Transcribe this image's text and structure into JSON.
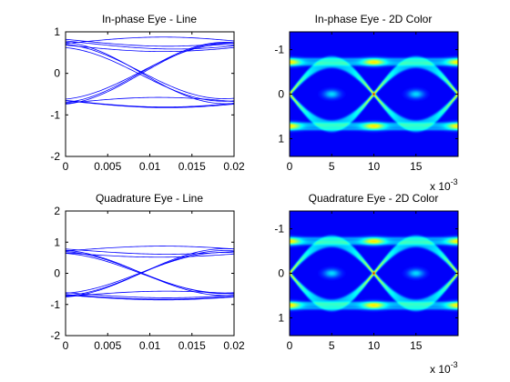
{
  "figure": {
    "background": "#ffffff"
  },
  "chart_data": [
    {
      "id": "ip_line",
      "type": "line",
      "title": "In-phase Eye - Line",
      "xlabel": "",
      "ylabel": "",
      "xlim": [
        0,
        0.02
      ],
      "ylim": [
        -2,
        1
      ],
      "y_reversed": false,
      "xticks": [
        0,
        0.005,
        0.01,
        0.015,
        0.02
      ],
      "xtick_labels": [
        "0",
        "0.005",
        "0.01",
        "0.015",
        "0.02"
      ],
      "yticks": [
        -2,
        -1,
        0,
        1
      ],
      "ytick_labels": [
        "-2",
        "-1",
        "0",
        "1"
      ],
      "line_color": "#0000ff",
      "series": [
        {
          "x": [
            0,
            0.02
          ],
          "y": [
            0.72,
            0.78
          ]
        },
        {
          "x": [
            0,
            0.02
          ],
          "y": [
            0.68,
            0.62
          ]
        },
        {
          "x": [
            0,
            0.02
          ],
          "y": [
            0.82,
            0.74
          ]
        },
        {
          "x": [
            0,
            0.02
          ],
          "y": [
            -0.65,
            -0.72
          ]
        },
        {
          "x": [
            0,
            0.02
          ],
          "y": [
            -0.72,
            -0.68
          ]
        },
        {
          "x": [
            0,
            0.02
          ],
          "y": [
            0.75,
            -0.72
          ]
        },
        {
          "x": [
            0,
            0.02
          ],
          "y": [
            0.62,
            -0.66
          ]
        },
        {
          "x": [
            0,
            0.02
          ],
          "y": [
            -0.7,
            0.74
          ]
        },
        {
          "x": [
            0,
            0.02
          ],
          "y": [
            -0.62,
            0.68
          ]
        },
        {
          "x": [
            0,
            0.02
          ],
          "y": [
            0.78,
            0.66
          ]
        },
        {
          "x": [
            0,
            0.02
          ],
          "y": [
            -0.66,
            -0.74
          ]
        },
        {
          "x": [
            0,
            0.02
          ],
          "y": [
            0.7,
            -0.6
          ]
        },
        {
          "x": [
            0,
            0.02
          ],
          "y": [
            -0.74,
            0.72
          ]
        }
      ]
    },
    {
      "id": "ip_color",
      "type": "heatmap",
      "title": "In-phase Eye - 2D Color",
      "xlabel": "",
      "ylabel": "",
      "xlim": [
        0,
        20
      ],
      "ylim": [
        -1.4,
        1.4
      ],
      "y_reversed": true,
      "xticks": [
        0,
        5,
        10,
        15
      ],
      "xtick_labels": [
        "0",
        "5",
        "10",
        "15"
      ],
      "yticks": [
        -1,
        0,
        1
      ],
      "ytick_labels": [
        "-1",
        "0",
        "1"
      ],
      "exponent_label": {
        "base": "x 10",
        "power": "-3"
      },
      "colormap": "jet",
      "eye_level": 0.72,
      "crossings_x": [
        5,
        15
      ],
      "hotspots_x": [
        0,
        10,
        20
      ]
    },
    {
      "id": "q_line",
      "type": "line",
      "title": "Quadrature Eye - Line",
      "xlabel": "",
      "ylabel": "",
      "xlim": [
        0,
        0.02
      ],
      "ylim": [
        -2,
        2
      ],
      "y_reversed": false,
      "xticks": [
        0,
        0.005,
        0.01,
        0.015,
        0.02
      ],
      "xtick_labels": [
        "0",
        "0.005",
        "0.01",
        "0.015",
        "0.02"
      ],
      "yticks": [
        -2,
        -1,
        0,
        1,
        2
      ],
      "ytick_labels": [
        "-2",
        "-1",
        "0",
        "1",
        "2"
      ],
      "line_color": "#0000ff",
      "series": [
        {
          "x": [
            0,
            0.02
          ],
          "y": [
            0.72,
            0.78
          ]
        },
        {
          "x": [
            0,
            0.02
          ],
          "y": [
            0.66,
            0.62
          ]
        },
        {
          "x": [
            0,
            0.02
          ],
          "y": [
            -0.68,
            -0.74
          ]
        },
        {
          "x": [
            0,
            0.02
          ],
          "y": [
            -0.74,
            -0.66
          ]
        },
        {
          "x": [
            0,
            0.02
          ],
          "y": [
            -0.62,
            -0.7
          ]
        },
        {
          "x": [
            0,
            0.02
          ],
          "y": [
            0.74,
            -0.7
          ]
        },
        {
          "x": [
            0,
            0.02
          ],
          "y": [
            0.64,
            -0.62
          ]
        },
        {
          "x": [
            0,
            0.02
          ],
          "y": [
            -0.72,
            0.72
          ]
        },
        {
          "x": [
            0,
            0.02
          ],
          "y": [
            -0.64,
            0.66
          ]
        },
        {
          "x": [
            0,
            0.02
          ],
          "y": [
            0.78,
            0.7
          ]
        },
        {
          "x": [
            0,
            0.02
          ],
          "y": [
            -0.7,
            -0.76
          ]
        },
        {
          "x": [
            0,
            0.02
          ],
          "y": [
            0.7,
            -0.64
          ]
        },
        {
          "x": [
            0,
            0.02
          ],
          "y": [
            -0.76,
            0.78
          ]
        }
      ]
    },
    {
      "id": "q_color",
      "type": "heatmap",
      "title": "Quadrature Eye - 2D Color",
      "xlabel": "",
      "ylabel": "",
      "xlim": [
        0,
        20
      ],
      "ylim": [
        -1.4,
        1.4
      ],
      "y_reversed": true,
      "xticks": [
        0,
        5,
        10,
        15
      ],
      "xtick_labels": [
        "0",
        "5",
        "10",
        "15"
      ],
      "yticks": [
        -1,
        0,
        1
      ],
      "ytick_labels": [
        "-1",
        "0",
        "1"
      ],
      "exponent_label": {
        "base": "x 10",
        "power": "-3"
      },
      "colormap": "jet",
      "eye_level": 0.72,
      "crossings_x": [
        5,
        15
      ],
      "hotspots_x": [
        0,
        10,
        20
      ]
    }
  ]
}
